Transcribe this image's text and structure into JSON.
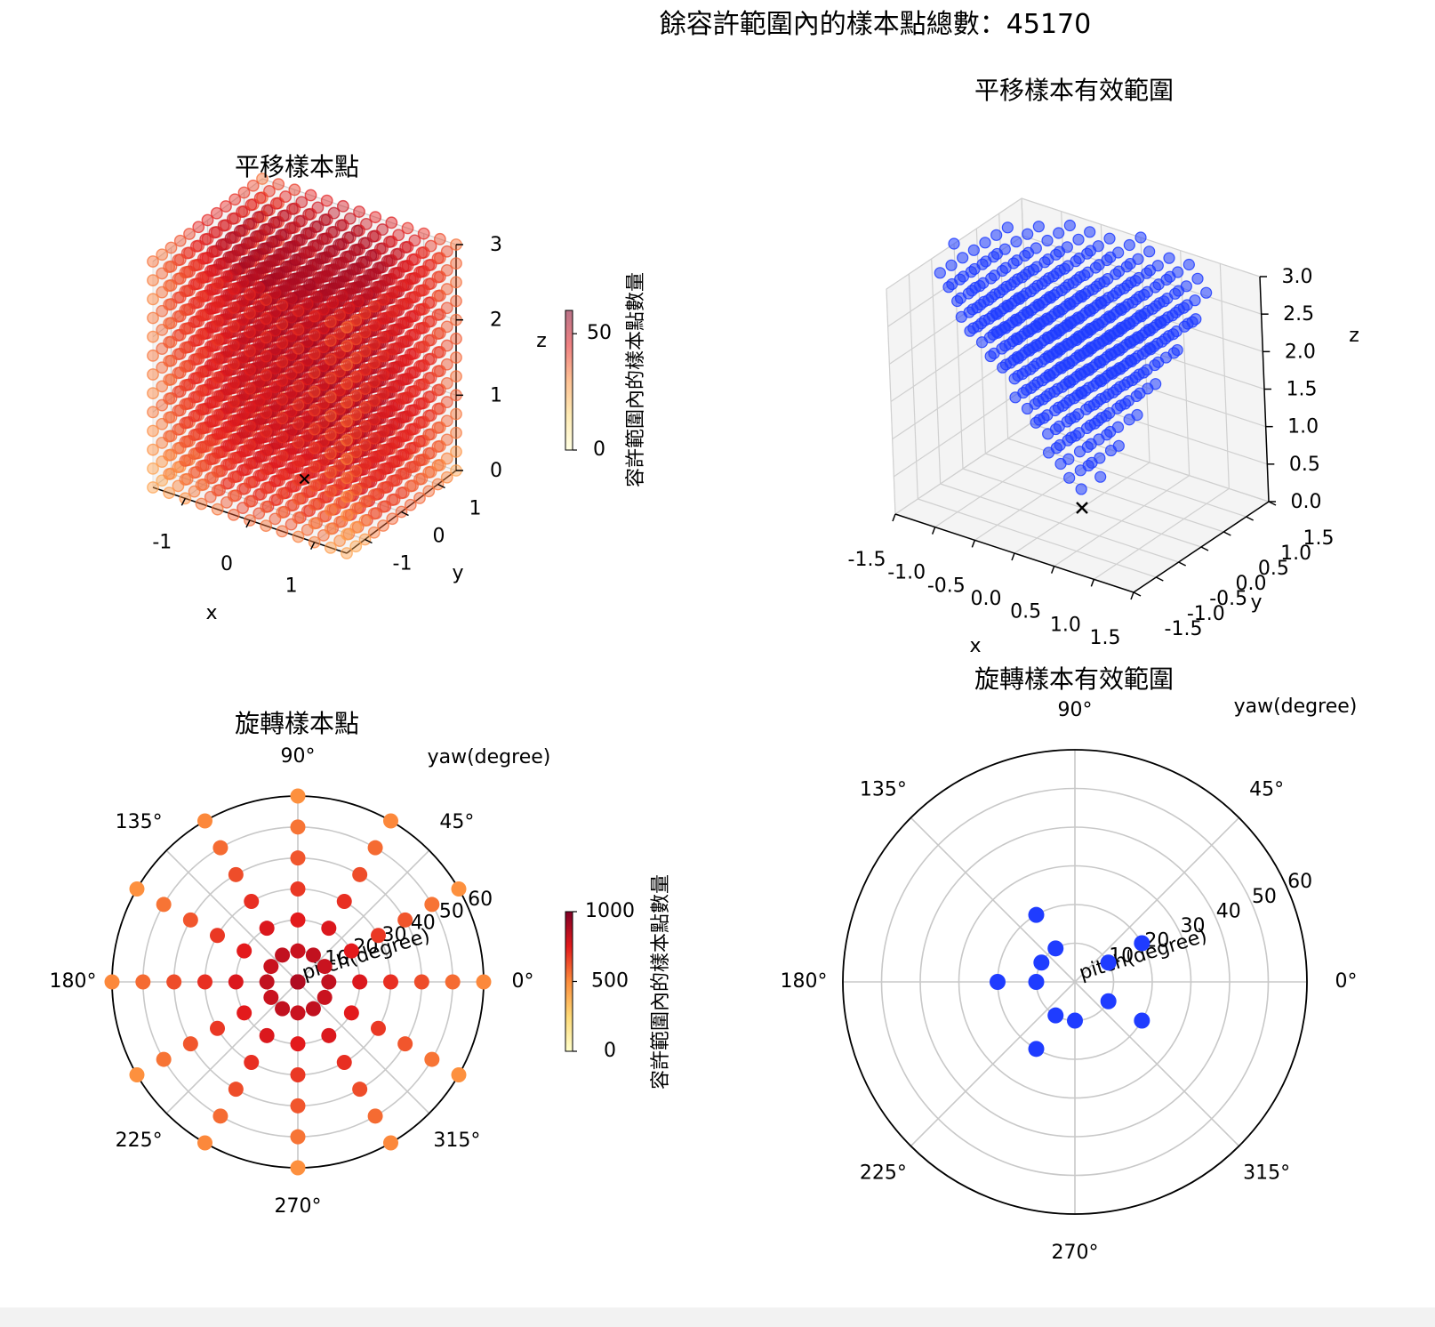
{
  "figure": {
    "suptitle": "餘容許範圍內的樣本點總數：45170"
  },
  "chart_data": [
    {
      "type": "scatter",
      "projection": "3d",
      "title": "平移樣本點",
      "xlabel": "x",
      "ylabel": "y",
      "zlabel": "z",
      "xticks": [
        "-1",
        "0",
        "1"
      ],
      "yticks": [
        "-1",
        "0",
        "1"
      ],
      "zticks": [
        "0",
        "1",
        "2",
        "3"
      ],
      "xlim": [
        -1.5,
        1.5
      ],
      "ylim": [
        -1.5,
        1.5
      ],
      "zlim": [
        0,
        3
      ],
      "grid": "regular 13 x 13 x 13 lattice",
      "grid_axis_values": [
        -1.5,
        -1.25,
        -1.0,
        -0.75,
        -0.5,
        -0.25,
        0.0,
        0.25,
        0.5,
        0.75,
        1.0,
        1.25,
        1.5
      ],
      "grid_z_values": [
        0.0,
        0.25,
        0.5,
        0.75,
        1.0,
        1.25,
        1.5,
        1.75,
        2.0,
        2.25,
        2.5,
        2.75,
        3.0
      ],
      "origin_marker": "x",
      "colormap": "YlOrRd",
      "colorbar": {
        "label": "容許範圍內的樣本點數量",
        "ticks": [
          "0",
          "50"
        ],
        "range": [
          0,
          60
        ]
      },
      "point_alpha": 0.45
    },
    {
      "type": "scatter",
      "projection": "3d",
      "title": "平移樣本有效範圍",
      "xlabel": "x",
      "ylabel": "y",
      "zlabel": "z",
      "xticks": [
        "-1.5",
        "-1.0",
        "-0.5",
        "0.0",
        "0.5",
        "1.0",
        "1.5"
      ],
      "yticks": [
        "-1.5",
        "-1.0",
        "-0.5",
        "0.0",
        "0.5",
        "1.0",
        "1.5"
      ],
      "zticks": [
        "0.0",
        "0.5",
        "1.0",
        "1.5",
        "2.0",
        "2.5",
        "3.0"
      ],
      "xlim": [
        -1.5,
        1.5
      ],
      "ylim": [
        -1.5,
        1.5
      ],
      "zlim": [
        0,
        3
      ],
      "color": "#1f3cff",
      "origin_marker": "x",
      "grid_axis_values": [
        -1.5,
        -1.25,
        -1.0,
        -0.75,
        -0.5,
        -0.25,
        0.0,
        0.25,
        0.5,
        0.75,
        1.0,
        1.25,
        1.5
      ],
      "grid_z_values": [
        0.0,
        0.25,
        0.5,
        0.75,
        1.0,
        1.25,
        1.5,
        1.75,
        2.0,
        2.25,
        2.5,
        2.75,
        3.0
      ],
      "valid_region": "cone opening upward from origin",
      "cone_slope": 0.5
    },
    {
      "type": "scatter",
      "projection": "polar",
      "title": "旋轉樣本點",
      "theta_label": "yaw(degree)",
      "r_label": "pitch(degree)",
      "theta_ticks": [
        "0°",
        "45°",
        "90°",
        "135°",
        "180°",
        "225°",
        "270°",
        "315°"
      ],
      "r_ticks": [
        "10",
        "20",
        "30",
        "40",
        "50",
        "60"
      ],
      "rlim": [
        0,
        60
      ],
      "points_desc": "yaw every 30° from 0° to 330°, pitch 0 to 60 every 10",
      "yaw_values": [
        0,
        30,
        60,
        90,
        120,
        150,
        180,
        210,
        240,
        270,
        300,
        330
      ],
      "pitch_values": [
        0,
        10,
        20,
        30,
        40,
        50,
        60
      ],
      "colormap": "YlOrRd",
      "colorbar": {
        "label": "容許範圍內的樣本點數量",
        "ticks": [
          "0",
          "500",
          "1000"
        ],
        "range": [
          0,
          1000
        ]
      }
    },
    {
      "type": "scatter",
      "projection": "polar",
      "title": "旋轉樣本有效範圍",
      "theta_label": "yaw(degree)",
      "r_label": "pitch(degree)",
      "theta_ticks": [
        "0°",
        "45°",
        "90°",
        "135°",
        "180°",
        "225°",
        "270°",
        "315°"
      ],
      "r_ticks": [
        "10",
        "20",
        "30",
        "40",
        "50",
        "60"
      ],
      "rlim": [
        0,
        60
      ],
      "color": "#1f3cff",
      "points": [
        {
          "yaw": 30,
          "pitch": 10
        },
        {
          "yaw": 30,
          "pitch": 20
        },
        {
          "yaw": 120,
          "pitch": 10
        },
        {
          "yaw": 120,
          "pitch": 20
        },
        {
          "yaw": 150,
          "pitch": 10
        },
        {
          "yaw": 180,
          "pitch": 10
        },
        {
          "yaw": 180,
          "pitch": 20
        },
        {
          "yaw": 240,
          "pitch": 10
        },
        {
          "yaw": 240,
          "pitch": 20
        },
        {
          "yaw": 270,
          "pitch": 10
        },
        {
          "yaw": 330,
          "pitch": 10
        },
        {
          "yaw": 330,
          "pitch": 20
        }
      ]
    }
  ]
}
